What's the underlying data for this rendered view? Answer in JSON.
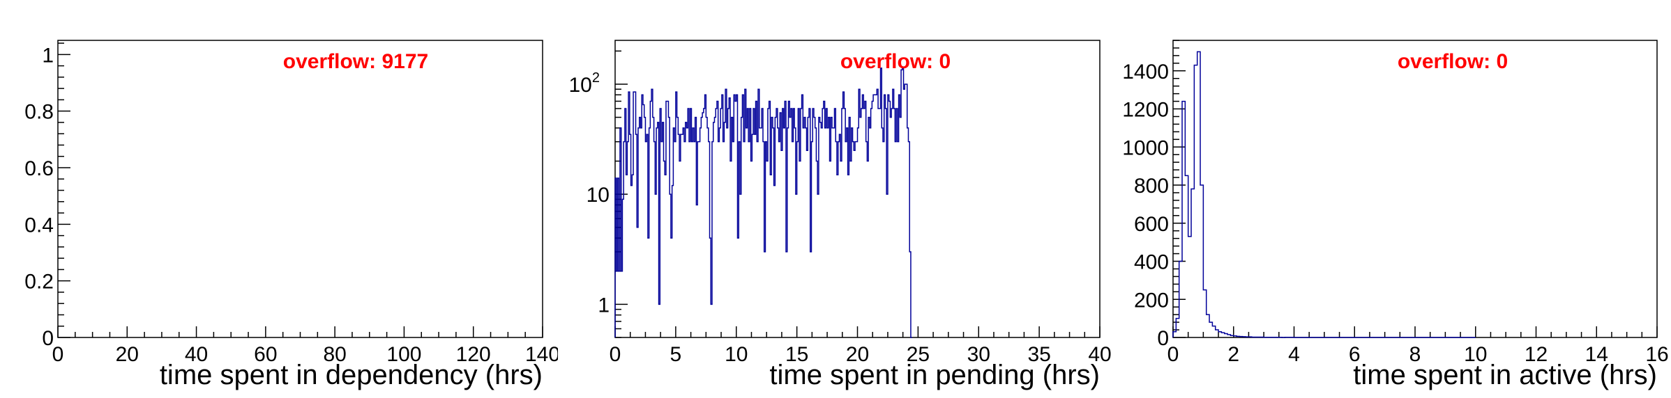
{
  "chart_data": [
    {
      "type": "histogram",
      "xlabel": "time spent in dependency (hrs)",
      "ylabel": "",
      "xlim": [
        0,
        140
      ],
      "ylim": [
        0,
        1.05
      ],
      "y_scale": "linear",
      "x_ticks": [
        "0",
        "20",
        "40",
        "60",
        "80",
        "100",
        "120",
        "140"
      ],
      "y_ticks": [
        "0",
        "0.2",
        "0.4",
        "0.6",
        "0.8",
        "1"
      ],
      "annotation": "overflow: 9177",
      "line_color": "#000099",
      "annotation_color": "#ff0000",
      "bin_width": 0.5,
      "values": []
    },
    {
      "type": "histogram",
      "xlabel": "time spent in pending (hrs)",
      "ylabel": "",
      "xlim": [
        0,
        40
      ],
      "ylim": [
        0.5,
        250
      ],
      "y_scale": "log",
      "x_ticks": [
        "0",
        "5",
        "10",
        "15",
        "20",
        "25",
        "30",
        "35",
        "40"
      ],
      "y_ticks": [
        "1",
        "10",
        "10^2"
      ],
      "annotation": "overflow: 0",
      "line_color": "#000099",
      "annotation_color": "#ff0000",
      "bin_width": 0.1,
      "bins_start": 0,
      "values": [
        14,
        2,
        14,
        2,
        40,
        2,
        9,
        30,
        60,
        15,
        30,
        85,
        35,
        12,
        15,
        85,
        85,
        35,
        5,
        40,
        50,
        40,
        80,
        65,
        50,
        30,
        35,
        4,
        40,
        70,
        90,
        50,
        30,
        10,
        40,
        45,
        1,
        60,
        30,
        45,
        20,
        15,
        70,
        70,
        50,
        10,
        4,
        12,
        40,
        30,
        85,
        50,
        35,
        20,
        35,
        35,
        40,
        30,
        45,
        40,
        60,
        30,
        60,
        30,
        40,
        30,
        50,
        8,
        30,
        30,
        40,
        50,
        55,
        60,
        80,
        50,
        40,
        30,
        4,
        1,
        30,
        45,
        50,
        60,
        70,
        30,
        40,
        60,
        80,
        30,
        45,
        90,
        40,
        60,
        75,
        20,
        50,
        30,
        80,
        70,
        80,
        4,
        30,
        10,
        50,
        80,
        30,
        90,
        40,
        60,
        30,
        60,
        20,
        35,
        60,
        35,
        70,
        30,
        90,
        40,
        40,
        60,
        30,
        3,
        30,
        20,
        60,
        70,
        15,
        50,
        40,
        12,
        50,
        60,
        40,
        30,
        55,
        25,
        60,
        40,
        70,
        3,
        40,
        70,
        50,
        60,
        30,
        60,
        40,
        10,
        30,
        60,
        20,
        60,
        80,
        40,
        50,
        40,
        25,
        50,
        60,
        3,
        30,
        60,
        50,
        40,
        20,
        10,
        50,
        45,
        40,
        60,
        70,
        40,
        60,
        40,
        50,
        20,
        50,
        40,
        40,
        60,
        30,
        15,
        30,
        35,
        20,
        60,
        85,
        60,
        30,
        40,
        15,
        50,
        20,
        40,
        30,
        25,
        30,
        30,
        40,
        90,
        50,
        60,
        80,
        60,
        70,
        30,
        20,
        50,
        40,
        60,
        70,
        80,
        80,
        80,
        90,
        60,
        60,
        140,
        40,
        30,
        80,
        60,
        10,
        80,
        70,
        50,
        60,
        90,
        60,
        30,
        60,
        30,
        80,
        50,
        135,
        140,
        90,
        100,
        100,
        40,
        30,
        3,
        0
      ]
    },
    {
      "type": "histogram",
      "xlabel": "time spent in active (hrs)",
      "ylabel": "",
      "xlim": [
        0,
        16
      ],
      "ylim": [
        0,
        1560
      ],
      "y_scale": "linear",
      "x_ticks": [
        "0",
        "2",
        "4",
        "6",
        "8",
        "10",
        "12",
        "14",
        "16"
      ],
      "y_ticks": [
        "0",
        "200",
        "400",
        "600",
        "800",
        "1000",
        "1200",
        "1400"
      ],
      "annotation": "overflow: 0",
      "line_color": "#000099",
      "annotation_color": "#ff0000",
      "bin_width": 0.1,
      "bins_start": 0,
      "values": [
        30,
        100,
        400,
        1240,
        850,
        530,
        780,
        1430,
        1500,
        800,
        250,
        120,
        80,
        60,
        40,
        30,
        25,
        20,
        15,
        10,
        8,
        6,
        5,
        4,
        3,
        3,
        2,
        2,
        2,
        2,
        1,
        1,
        1,
        1,
        1,
        1,
        0,
        1,
        1,
        1,
        0,
        0,
        0,
        0,
        0,
        0,
        0,
        0,
        0,
        0,
        0,
        0,
        0,
        0,
        0,
        0,
        0,
        0,
        0,
        0,
        0,
        0,
        0,
        0,
        0,
        0,
        0,
        0,
        0,
        0,
        0,
        0,
        0,
        0,
        0,
        0,
        0,
        0,
        0,
        0,
        0,
        0,
        0,
        0,
        0,
        0,
        0,
        0,
        0,
        0,
        0,
        0,
        0,
        0,
        0,
        0,
        0,
        0,
        0,
        0
      ]
    }
  ]
}
